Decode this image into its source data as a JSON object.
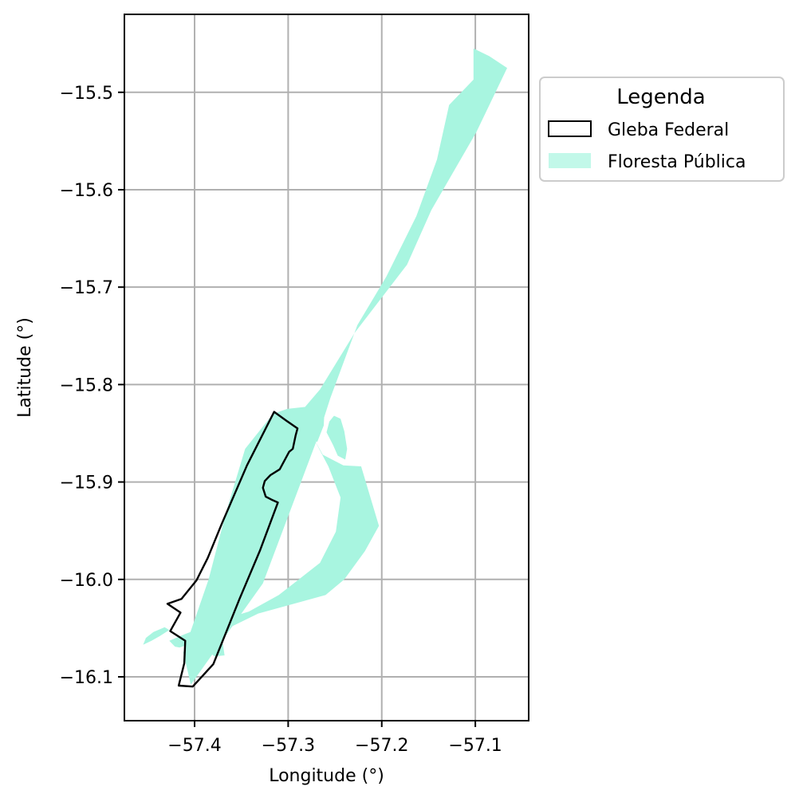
{
  "chart_data": {
    "type": "map",
    "xlabel": "Longitude (°)",
    "ylabel": "Latitude (°)",
    "xlim": [
      -57.475,
      -57.043
    ],
    "ylim": [
      -16.145,
      -15.42
    ],
    "x_ticks": [
      -57.4,
      -57.3,
      -57.2,
      -57.1
    ],
    "x_tick_labels": [
      "−57.4",
      "−57.3",
      "−57.2",
      "−57.1"
    ],
    "y_ticks": [
      -15.5,
      -15.6,
      -15.7,
      -15.8,
      -15.9,
      -16.0,
      -16.1
    ],
    "y_tick_labels": [
      "−15.5",
      "−15.6",
      "−15.7",
      "−15.8",
      "−15.9",
      "−16.0",
      "−16.1"
    ],
    "grid": true,
    "legend": {
      "title": "Legenda",
      "placement": "outside-right-top",
      "entries": [
        {
          "label": "Gleba Federal",
          "style": "outline",
          "color": "#000000"
        },
        {
          "label": "Floresta Pública",
          "style": "fill",
          "color": "#a8f5e0"
        }
      ]
    },
    "layers": [
      {
        "name": "Floresta Pública",
        "color": "#a8f5e0",
        "polygons": [
          [
            [
              -57.102,
              -15.455
            ],
            [
              -57.085,
              -15.463
            ],
            [
              -57.066,
              -15.475
            ],
            [
              -57.099,
              -15.541
            ],
            [
              -57.147,
              -15.621
            ],
            [
              -57.173,
              -15.677
            ],
            [
              -57.229,
              -15.747
            ],
            [
              -57.266,
              -15.805
            ],
            [
              -57.282,
              -15.823
            ],
            [
              -57.301,
              -15.825
            ],
            [
              -57.316,
              -15.83
            ],
            [
              -57.346,
              -15.866
            ],
            [
              -57.366,
              -15.93
            ],
            [
              -57.385,
              -16.0
            ],
            [
              -57.412,
              -16.075
            ],
            [
              -57.404,
              -16.108
            ],
            [
              -57.327,
              -16.004
            ],
            [
              -57.269,
              -15.856
            ],
            [
              -57.255,
              -15.814
            ],
            [
              -57.226,
              -15.739
            ],
            [
              -57.195,
              -15.689
            ],
            [
              -57.163,
              -15.627
            ],
            [
              -57.141,
              -15.569
            ],
            [
              -57.128,
              -15.513
            ],
            [
              -57.102,
              -15.487
            ]
          ],
          [
            [
              -57.274,
              -15.853
            ],
            [
              -57.263,
              -15.872
            ],
            [
              -57.241,
              -15.883
            ],
            [
              -57.222,
              -15.884
            ],
            [
              -57.203,
              -15.945
            ],
            [
              -57.218,
              -15.971
            ],
            [
              -57.24,
              -16.0
            ],
            [
              -57.26,
              -16.016
            ],
            [
              -57.332,
              -16.035
            ],
            [
              -57.383,
              -16.059
            ],
            [
              -57.416,
              -16.07
            ],
            [
              -57.421,
              -16.069
            ],
            [
              -57.427,
              -16.063
            ],
            [
              -57.41,
              -16.056
            ],
            [
              -57.369,
              -16.041
            ],
            [
              -57.342,
              -16.033
            ],
            [
              -57.31,
              -16.016
            ],
            [
              -57.266,
              -15.983
            ],
            [
              -57.249,
              -15.951
            ],
            [
              -57.244,
              -15.916
            ],
            [
              -57.257,
              -15.884
            ]
          ],
          [
            [
              -57.383,
              -16.062
            ],
            [
              -57.371,
              -16.058
            ],
            [
              -57.368,
              -16.078
            ],
            [
              -57.379,
              -16.079
            ],
            [
              -57.389,
              -16.07
            ]
          ],
          [
            [
              -57.432,
              -16.049
            ],
            [
              -57.444,
              -16.054
            ],
            [
              -57.452,
              -16.06
            ],
            [
              -57.455,
              -16.067
            ],
            [
              -57.446,
              -16.063
            ],
            [
              -57.437,
              -16.058
            ],
            [
              -57.427,
              -16.052
            ]
          ],
          [
            [
              -57.261,
              -15.821
            ],
            [
              -57.268,
              -15.841
            ],
            [
              -57.275,
              -15.854
            ],
            [
              -57.269,
              -15.859
            ],
            [
              -57.262,
              -15.842
            ]
          ],
          [
            [
              -57.251,
              -15.832
            ],
            [
              -57.244,
              -15.835
            ],
            [
              -57.24,
              -15.848
            ],
            [
              -57.237,
              -15.866
            ],
            [
              -57.239,
              -15.877
            ],
            [
              -57.247,
              -15.873
            ],
            [
              -57.252,
              -15.862
            ],
            [
              -57.259,
              -15.849
            ],
            [
              -57.256,
              -15.838
            ]
          ]
        ]
      },
      {
        "name": "Gleba Federal",
        "color": "#000000",
        "polygons": [
          [
            [
              -57.315,
              -15.828
            ],
            [
              -57.302,
              -15.837
            ],
            [
              -57.29,
              -15.845
            ],
            [
              -57.292,
              -15.852
            ],
            [
              -57.295,
              -15.866
            ],
            [
              -57.299,
              -15.869
            ],
            [
              -57.309,
              -15.887
            ],
            [
              -57.319,
              -15.893
            ],
            [
              -57.325,
              -15.899
            ],
            [
              -57.327,
              -15.906
            ],
            [
              -57.324,
              -15.915
            ],
            [
              -57.318,
              -15.918
            ],
            [
              -57.311,
              -15.921
            ],
            [
              -57.33,
              -15.97
            ],
            [
              -57.352,
              -16.02
            ],
            [
              -57.38,
              -16.087
            ],
            [
              -57.402,
              -16.11
            ],
            [
              -57.417,
              -16.109
            ],
            [
              -57.411,
              -16.086
            ],
            [
              -57.41,
              -16.063
            ],
            [
              -57.426,
              -16.053
            ],
            [
              -57.415,
              -16.034
            ],
            [
              -57.429,
              -16.025
            ],
            [
              -57.414,
              -16.02
            ],
            [
              -57.398,
              -16.001
            ],
            [
              -57.386,
              -15.978
            ],
            [
              -57.371,
              -15.943
            ],
            [
              -57.344,
              -15.883
            ]
          ]
        ]
      }
    ]
  }
}
